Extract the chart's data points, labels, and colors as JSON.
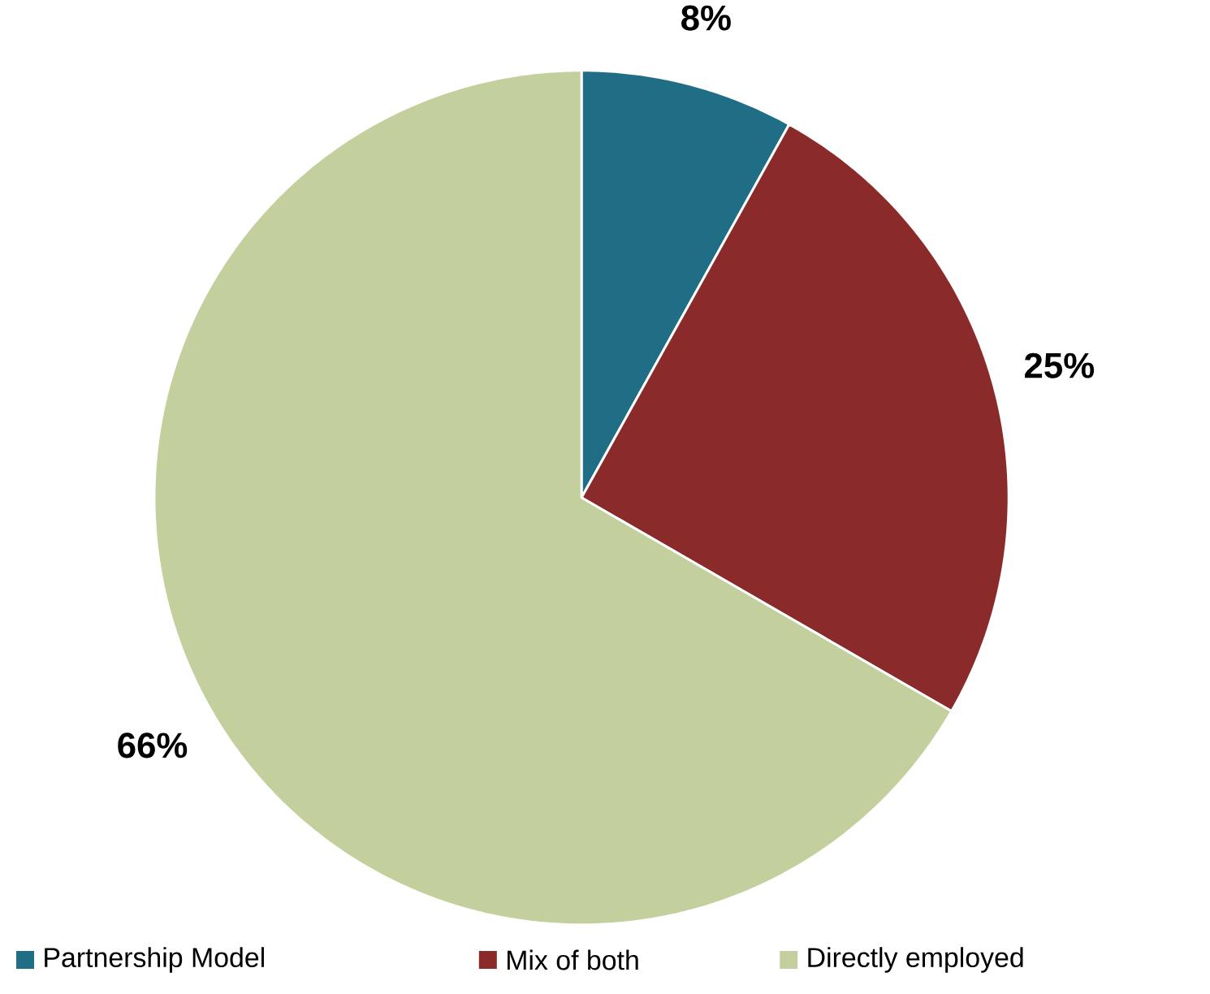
{
  "chart_data": {
    "type": "pie",
    "categories": [
      "Partnership Model",
      "Mix of both",
      "Directly employed"
    ],
    "values": [
      8,
      25,
      66
    ],
    "colors": [
      "#1f6e85",
      "#8b2a2a",
      "#c4cf9e"
    ],
    "value_labels": [
      "8%",
      "25%",
      "66%"
    ],
    "legend": "bottom"
  }
}
